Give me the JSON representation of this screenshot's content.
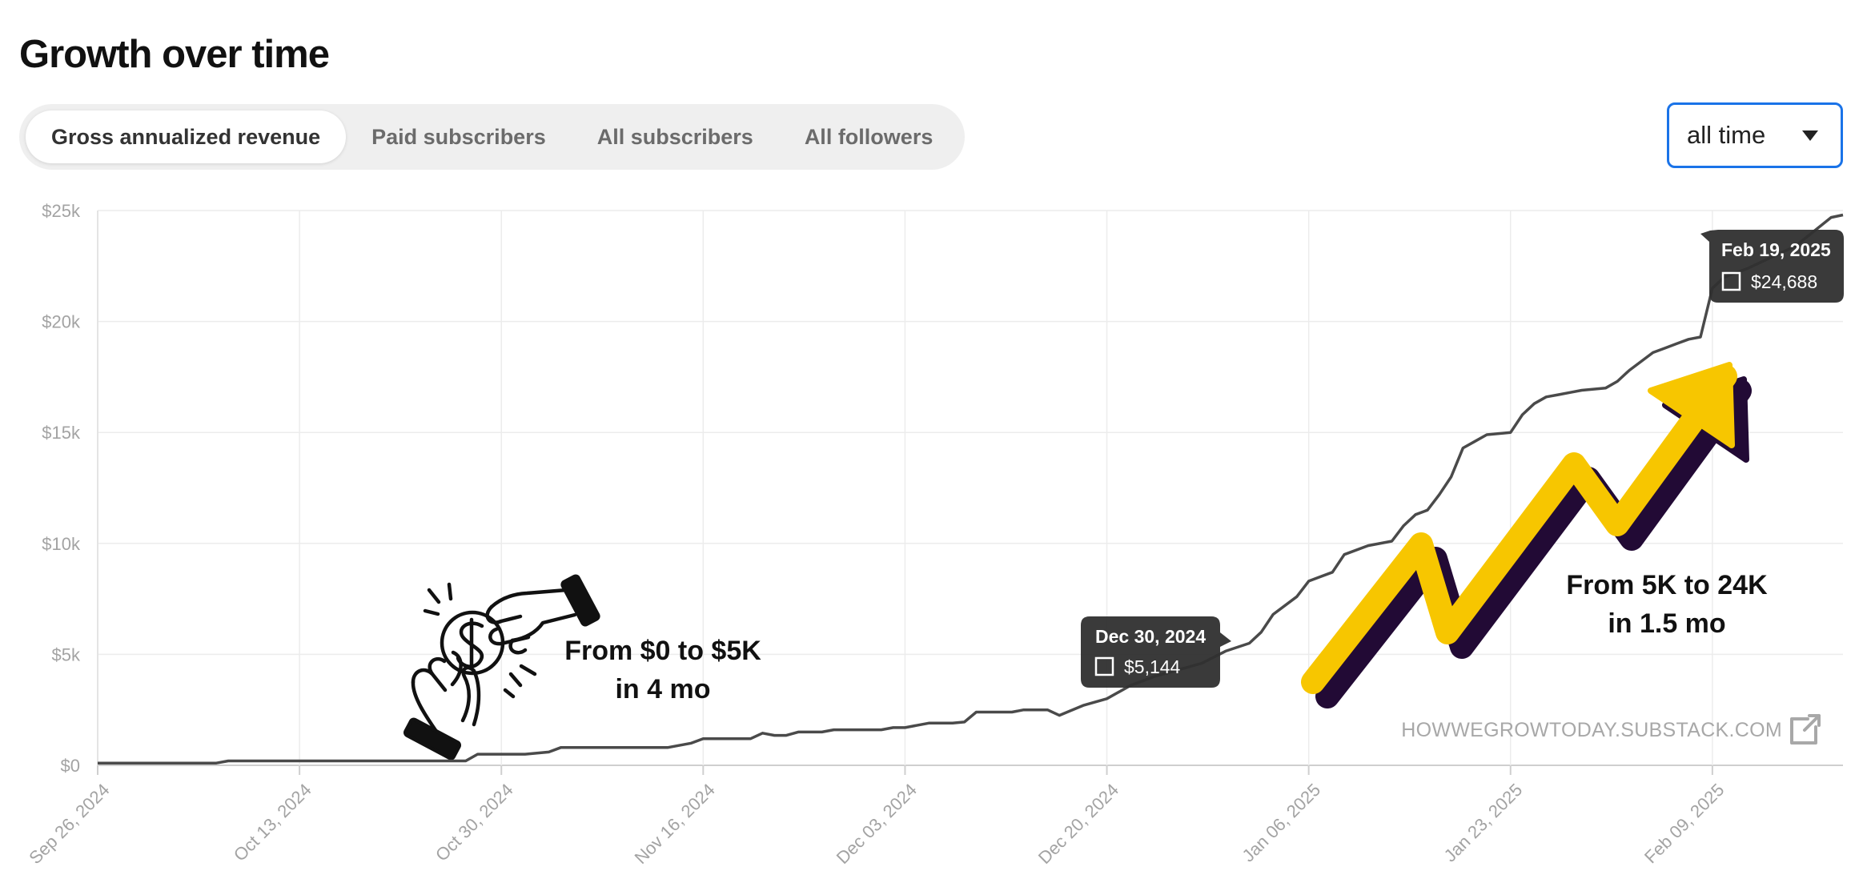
{
  "page": {
    "title": "Growth over time",
    "tabs": [
      {
        "label": "Gross annualized revenue",
        "active": true
      },
      {
        "label": "Paid subscribers",
        "active": false
      },
      {
        "label": "All subscribers",
        "active": false
      },
      {
        "label": "All followers",
        "active": false
      }
    ],
    "range": {
      "label": "all time",
      "icon": "caret-down-icon"
    },
    "accent_color": "#1a73e8"
  },
  "chart_data": {
    "type": "line",
    "title": "",
    "xlabel": "",
    "ylabel": "",
    "ylim": [
      0,
      25000
    ],
    "xlim": [
      "2024-09-26",
      "2025-02-20"
    ],
    "y_ticks": [
      0,
      5000,
      10000,
      15000,
      20000,
      25000
    ],
    "y_tick_labels": [
      "$0",
      "$5k",
      "$10k",
      "$15k",
      "$20k",
      "$25k"
    ],
    "x_ticks": [
      "2024-09-26",
      "2024-10-13",
      "2024-10-30",
      "2024-11-16",
      "2024-12-03",
      "2024-12-20",
      "2025-01-06",
      "2025-01-23",
      "2025-02-09"
    ],
    "x_tick_labels": [
      "Sep 26, 2024",
      "Oct 13, 2024",
      "Oct 30, 2024",
      "Nov 16, 2024",
      "Dec 03, 2024",
      "Dec 20, 2024",
      "Jan 06, 2025",
      "Jan 23, 2025",
      "Feb 09, 2025"
    ],
    "grid": true,
    "line_color": "#4a4a4a",
    "series": [
      {
        "points": [
          [
            "2024-09-26",
            100
          ],
          [
            "2024-10-06",
            100
          ],
          [
            "2024-10-07",
            200
          ],
          [
            "2024-10-27",
            200
          ],
          [
            "2024-10-28",
            500
          ],
          [
            "2024-11-01",
            500
          ],
          [
            "2024-11-03",
            600
          ],
          [
            "2024-11-04",
            800
          ],
          [
            "2024-11-13",
            800
          ],
          [
            "2024-11-15",
            1000
          ],
          [
            "2024-11-16",
            1200
          ],
          [
            "2024-11-20",
            1200
          ],
          [
            "2024-11-21",
            1450
          ],
          [
            "2024-11-22",
            1350
          ],
          [
            "2024-11-23",
            1350
          ],
          [
            "2024-11-24",
            1500
          ],
          [
            "2024-11-26",
            1500
          ],
          [
            "2024-11-27",
            1600
          ],
          [
            "2024-12-01",
            1600
          ],
          [
            "2024-12-02",
            1700
          ],
          [
            "2024-12-03",
            1700
          ],
          [
            "2024-12-05",
            1900
          ],
          [
            "2024-12-07",
            1900
          ],
          [
            "2024-12-08",
            1950
          ],
          [
            "2024-12-09",
            2400
          ],
          [
            "2024-12-12",
            2400
          ],
          [
            "2024-12-13",
            2500
          ],
          [
            "2024-12-15",
            2500
          ],
          [
            "2024-12-16",
            2250
          ],
          [
            "2024-12-18",
            2700
          ],
          [
            "2024-12-20",
            3000
          ],
          [
            "2024-12-22",
            3600
          ],
          [
            "2024-12-24",
            4000
          ],
          [
            "2024-12-26",
            4300
          ],
          [
            "2024-12-28",
            4600
          ],
          [
            "2024-12-30",
            5144
          ],
          [
            "2025-01-01",
            5500
          ],
          [
            "2025-01-02",
            6000
          ],
          [
            "2025-01-03",
            6800
          ],
          [
            "2025-01-05",
            7600
          ],
          [
            "2025-01-06",
            8300
          ],
          [
            "2025-01-08",
            8700
          ],
          [
            "2025-01-09",
            9500
          ],
          [
            "2025-01-11",
            9900
          ],
          [
            "2025-01-13",
            10100
          ],
          [
            "2025-01-14",
            10800
          ],
          [
            "2025-01-15",
            11300
          ],
          [
            "2025-01-16",
            11500
          ],
          [
            "2025-01-17",
            12200
          ],
          [
            "2025-01-18",
            13000
          ],
          [
            "2025-01-19",
            14300
          ],
          [
            "2025-01-20",
            14600
          ],
          [
            "2025-01-21",
            14900
          ],
          [
            "2025-01-23",
            15000
          ],
          [
            "2025-01-24",
            15800
          ],
          [
            "2025-01-25",
            16300
          ],
          [
            "2025-01-26",
            16600
          ],
          [
            "2025-01-27",
            16700
          ],
          [
            "2025-01-28",
            16800
          ],
          [
            "2025-01-29",
            16900
          ],
          [
            "2025-01-31",
            17000
          ],
          [
            "2025-02-01",
            17300
          ],
          [
            "2025-02-02",
            17800
          ],
          [
            "2025-02-03",
            18200
          ],
          [
            "2025-02-04",
            18600
          ],
          [
            "2025-02-05",
            18800
          ],
          [
            "2025-02-06",
            19000
          ],
          [
            "2025-02-07",
            19200
          ],
          [
            "2025-02-08",
            19300
          ],
          [
            "2025-02-09",
            21500
          ],
          [
            "2025-02-10",
            22000
          ],
          [
            "2025-02-12",
            22400
          ],
          [
            "2025-02-14",
            22900
          ],
          [
            "2025-02-16",
            23400
          ],
          [
            "2025-02-19",
            24688
          ],
          [
            "2025-02-20",
            24800
          ]
        ]
      }
    ],
    "tooltips": [
      {
        "date_label": "Dec 30, 2024",
        "value_label": "$5,144",
        "x": "2024-12-30",
        "y": 5144
      },
      {
        "date_label": "Feb 19, 2025",
        "value_label": "$24,688",
        "x": "2025-02-19",
        "y": 24688
      }
    ],
    "annotations": [
      {
        "lines": [
          "From $0 to $5K",
          "in 4 mo"
        ]
      },
      {
        "lines": [
          "From 5K to 24K",
          "in 1.5 mo"
        ]
      }
    ],
    "watermark": {
      "text": "HOWWEGROWTODAY.SUBSTACK.COM",
      "icon": "external-link-icon"
    },
    "decorations": {
      "growth_arrow_color": "#f7c600",
      "growth_arrow_shadow": "#220a35",
      "illustration": "hands-exchanging-coin-icon"
    }
  }
}
